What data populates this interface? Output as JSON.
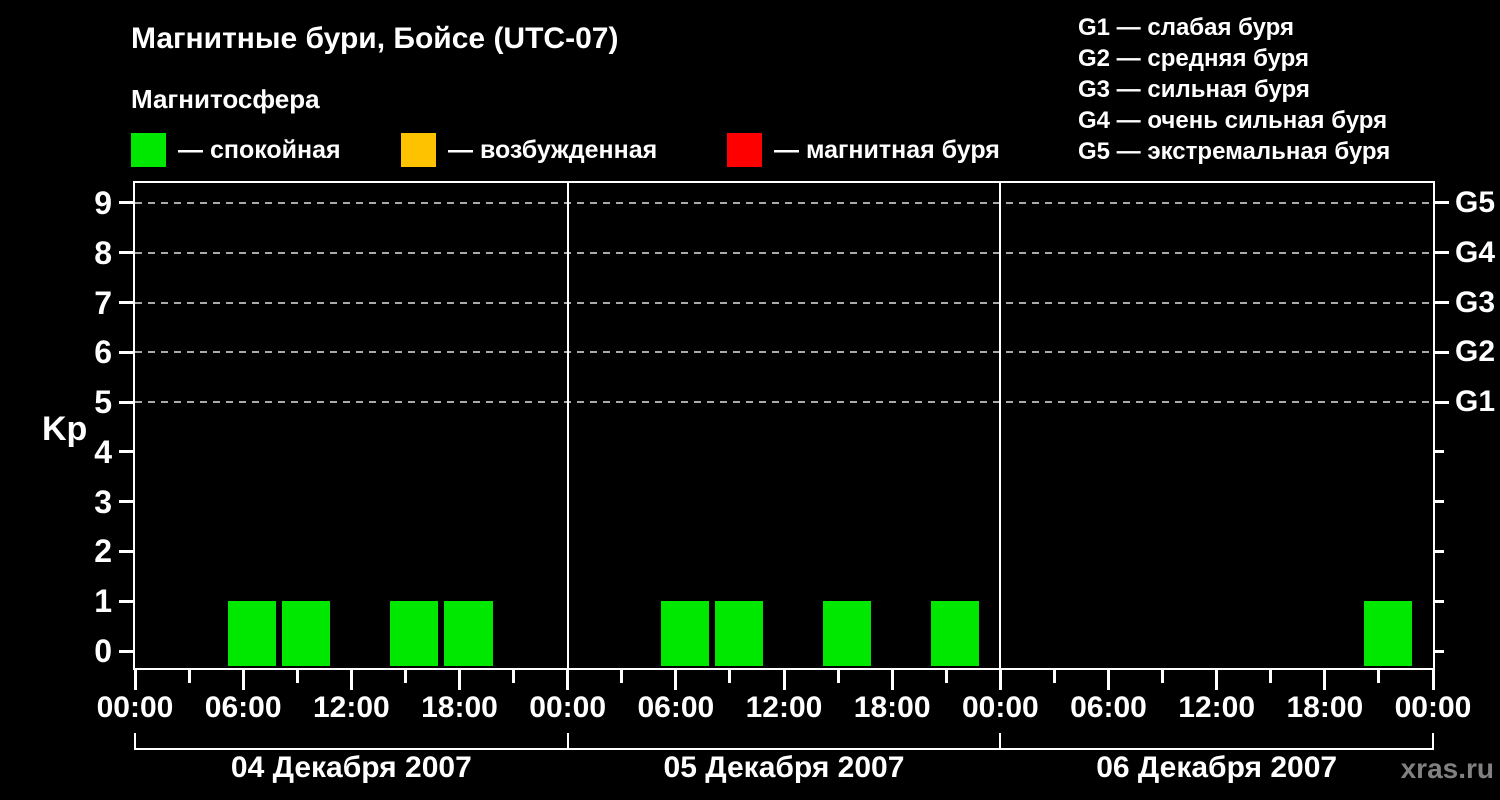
{
  "header": {
    "title": "Магнитные бури, Бойсе (UTC-07)",
    "subtitle": "Магнитосфера"
  },
  "legend": {
    "items": [
      {
        "key": "quiet",
        "label": "— спокойная",
        "color": "#00e800"
      },
      {
        "key": "excited",
        "label": "— возбужденная",
        "color": "#ffc200"
      },
      {
        "key": "storm",
        "label": "— магнитная буря",
        "color": "#ff0000"
      }
    ]
  },
  "storm_scale_legend": {
    "items": [
      "G1 — слабая буря",
      "G2 — средняя буря",
      "G3 — сильная буря",
      "G4 — очень сильная буря",
      "G5 — экстремальная буря"
    ]
  },
  "watermark": "xras.ru",
  "chart_data": {
    "type": "bar",
    "title": "Магнитные бури, Бойсе (UTC-07)",
    "subtitle": "Магнитосфера",
    "ylabel": "Kp",
    "ylim": [
      0,
      9
    ],
    "yticks": [
      0,
      1,
      2,
      3,
      4,
      5,
      6,
      7,
      8,
      9
    ],
    "grid": "dashed horizontal lines at Kp 5..9",
    "legend_position": "top",
    "right_axis": [
      {
        "kp": 5,
        "label": "G1"
      },
      {
        "kp": 6,
        "label": "G2"
      },
      {
        "kp": 7,
        "label": "G3"
      },
      {
        "kp": 8,
        "label": "G4"
      },
      {
        "kp": 9,
        "label": "G5"
      }
    ],
    "x_label_cycle": [
      "00:00",
      "06:00",
      "12:00",
      "18:00"
    ],
    "x_tick_step_hours": 3,
    "x_major_step_hours": 6,
    "hours_per_panel": 24,
    "panels": [
      {
        "date": "04 Декабря 2007",
        "bars": [
          {
            "start_hour": 5,
            "end_hour": 8,
            "kp": 1,
            "status": "quiet"
          },
          {
            "start_hour": 8,
            "end_hour": 11,
            "kp": 1,
            "status": "quiet"
          },
          {
            "start_hour": 14,
            "end_hour": 17,
            "kp": 1,
            "status": "quiet"
          },
          {
            "start_hour": 17,
            "end_hour": 20,
            "kp": 1,
            "status": "quiet"
          }
        ]
      },
      {
        "date": "05 Декабря 2007",
        "bars": [
          {
            "start_hour": 5,
            "end_hour": 8,
            "kp": 1,
            "status": "quiet"
          },
          {
            "start_hour": 8,
            "end_hour": 11,
            "kp": 1,
            "status": "quiet"
          },
          {
            "start_hour": 14,
            "end_hour": 17,
            "kp": 1,
            "status": "quiet"
          },
          {
            "start_hour": 20,
            "end_hour": 23,
            "kp": 1,
            "status": "quiet"
          }
        ]
      },
      {
        "date": "06 Декабря 2007",
        "bars": [
          {
            "start_hour": 20,
            "end_hour": 23,
            "kp": 1,
            "status": "quiet"
          }
        ]
      }
    ]
  }
}
